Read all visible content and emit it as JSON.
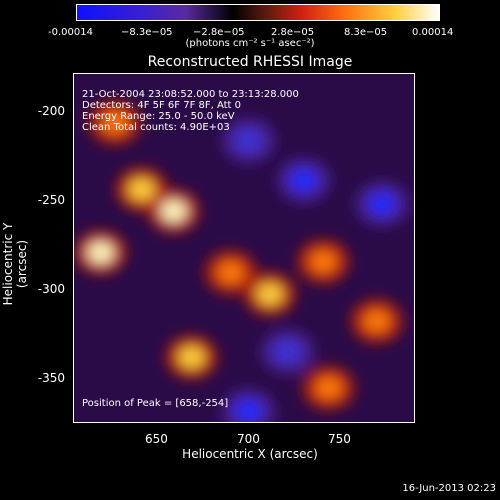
{
  "colorbar": {
    "ticks": [
      "-0.00014",
      "−8.3e−05",
      "−2.8e−05",
      "2.8e−05",
      "8.3e−05",
      "0.00014"
    ],
    "unit": "(photons cm⁻² s⁻¹ asec⁻²)"
  },
  "title": "Reconstructed RHESSI Image",
  "info": {
    "line1": "21-Oct-2004 23:08:52.000 to 23:13:28.000",
    "line2": "Detectors: 4F 5F 6F 7F 8F, Att 0",
    "line3": "Energy Range: 25.0 - 50.0 keV",
    "line4": "Clean    Total counts: 4.90E+03",
    "peak": "Position of Peak = [658,-254]"
  },
  "chart_data": {
    "type": "heatmap",
    "title": "Reconstructed RHESSI Image",
    "xlabel": "Heliocentric X (arcsec)",
    "ylabel": "Heliocentric Y (arcsec)",
    "xlim": [
      602,
      794
    ],
    "ylim": [
      -372,
      -178
    ],
    "xticks": [
      "650",
      "700",
      "750"
    ],
    "yticks": [
      "-200",
      "-250",
      "-300",
      "-350"
    ],
    "colorbar_range": [
      -0.00014,
      0.00014
    ],
    "peak": [
      658,
      -254
    ],
    "bright_sources": [
      {
        "x": 617,
        "y": -277,
        "level": 1.0
      },
      {
        "x": 658,
        "y": -254,
        "level": 1.0
      },
      {
        "x": 640,
        "y": -242,
        "level": 0.75
      },
      {
        "x": 668,
        "y": -335,
        "level": 0.7
      },
      {
        "x": 690,
        "y": -288,
        "level": 0.55
      },
      {
        "x": 712,
        "y": -300,
        "level": 0.7
      },
      {
        "x": 745,
        "y": -352,
        "level": 0.55
      },
      {
        "x": 772,
        "y": -315,
        "level": 0.5
      },
      {
        "x": 742,
        "y": -282,
        "level": 0.5
      },
      {
        "x": 625,
        "y": -205,
        "level": 0.5
      }
    ],
    "dark_sources": [
      {
        "x": 731,
        "y": -237,
        "level": -0.9
      },
      {
        "x": 700,
        "y": -365,
        "level": -0.9
      },
      {
        "x": 775,
        "y": -250,
        "level": -0.8
      },
      {
        "x": 722,
        "y": -332,
        "level": -0.6
      },
      {
        "x": 700,
        "y": -215,
        "level": -0.5
      }
    ]
  },
  "footer": "16-Jun-2013 02:23"
}
